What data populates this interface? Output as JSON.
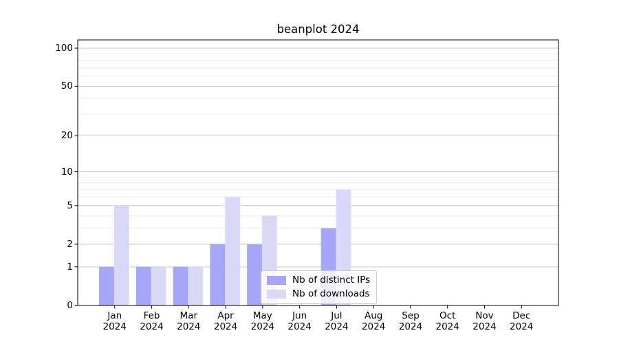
{
  "chart_data": {
    "type": "bar",
    "title": "beanplot 2024",
    "xlabel": "",
    "ylabel": "",
    "year_label": "2024",
    "categories": [
      "Jan",
      "Feb",
      "Mar",
      "Apr",
      "May",
      "Jun",
      "Jul",
      "Aug",
      "Sep",
      "Oct",
      "Nov",
      "Dec"
    ],
    "series": [
      {
        "name": "Nb of distinct IPs",
        "color": "#a6a6f7",
        "values": [
          1,
          1,
          1,
          2,
          2,
          0,
          3,
          0,
          0,
          0,
          0,
          0
        ]
      },
      {
        "name": "Nb of downloads",
        "color": "#d9d9f7",
        "values": [
          5,
          1,
          1,
          6,
          4,
          0,
          7,
          0,
          0,
          0,
          0,
          0
        ]
      }
    ],
    "yticks": [
      0,
      1,
      2,
      5,
      10,
      20,
      50,
      100
    ],
    "scale": "log1p",
    "ylim": [
      0,
      116
    ],
    "grid": true,
    "legend_position": "lower center"
  }
}
